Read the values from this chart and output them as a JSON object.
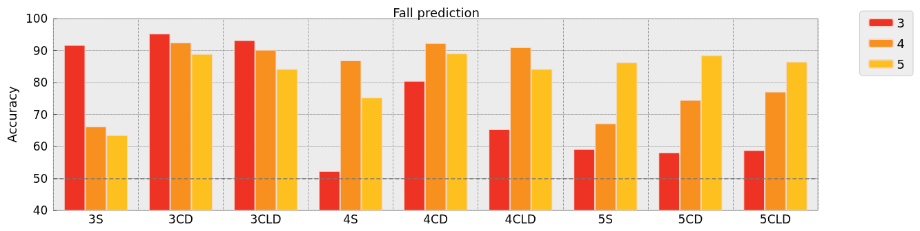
{
  "chart_data": {
    "type": "bar",
    "title": "Fall prediction",
    "ylabel": "Accuracy",
    "categories": [
      "3S",
      "3CD",
      "3CLD",
      "4S",
      "4CD",
      "4CLD",
      "5S",
      "5CD",
      "5CLD"
    ],
    "series": [
      {
        "name": "3",
        "color": "#ee3224",
        "values": [
          91.7,
          95.3,
          93.2,
          52.3,
          80.5,
          65.4,
          59.2,
          58.1,
          58.8
        ]
      },
      {
        "name": "4",
        "color": "#f7901e",
        "values": [
          66.2,
          92.5,
          90.2,
          86.9,
          92.3,
          91.0,
          67.2,
          74.5,
          77.1
        ]
      },
      {
        "name": "5",
        "color": "#fec01e",
        "values": [
          63.5,
          88.9,
          84.2,
          75.3,
          89.1,
          84.2,
          86.3,
          88.5,
          86.5
        ]
      }
    ],
    "ylim": [
      40,
      100
    ],
    "yticks": [
      40,
      50,
      60,
      70,
      80,
      90,
      100
    ],
    "grid": true,
    "legend": "top right",
    "ref_lines": [
      {
        "axis": "y",
        "value": 50,
        "color": "#777777",
        "line_style": "dashed"
      }
    ]
  }
}
